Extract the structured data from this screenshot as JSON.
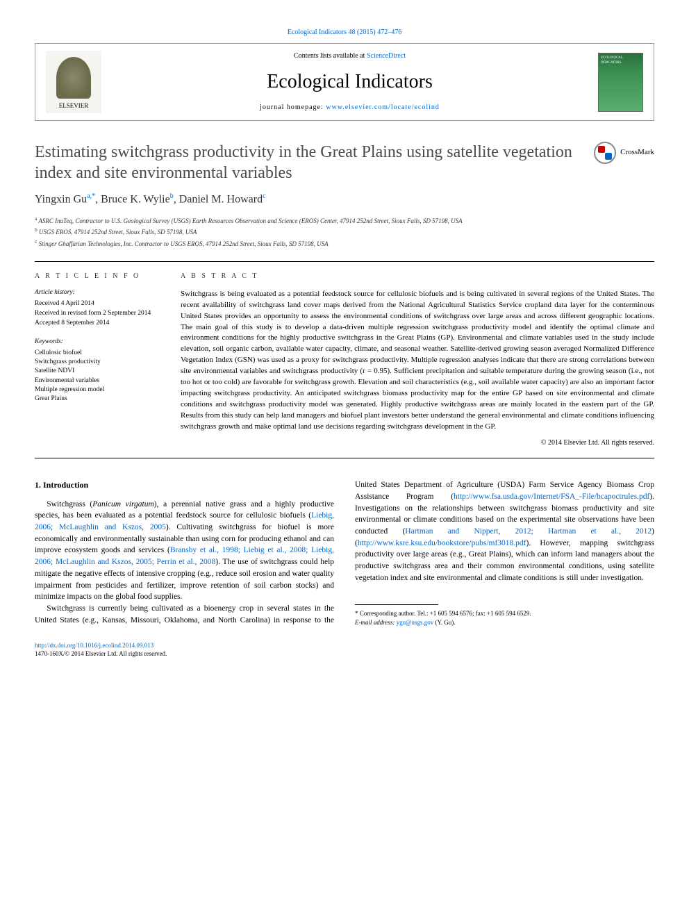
{
  "journal_ref": "Ecological Indicators 48 (2015) 472–476",
  "header": {
    "contents_prefix": "Contents lists available at ",
    "contents_link": "ScienceDirect",
    "journal_title": "Ecological Indicators",
    "homepage_prefix": "journal homepage: ",
    "homepage_link": "www.elsevier.com/locate/ecolind",
    "publisher": "ELSEVIER",
    "cover_text": "ECOLOGICAL INDICATORS"
  },
  "crossmark_label": "CrossMark",
  "article": {
    "title": "Estimating switchgrass productivity in the Great Plains using satellite vegetation index and site environmental variables",
    "authors_html": "Yingxin Gu",
    "author_a_sup": "a,*",
    "author_b": ", Bruce K. Wylie",
    "author_b_sup": "b",
    "author_c": ", Daniel M. Howard",
    "author_c_sup": "c",
    "affiliations": {
      "a_sup": "a",
      "a": " ASRC InuTeq, Contractor to U.S. Geological Survey (USGS) Earth Resources Observation and Science (EROS) Center, 47914 252nd Street, Sioux Falls, SD 57198, USA",
      "b_sup": "b",
      "b": " USGS EROS, 47914 252nd Street, Sioux Falls, SD 57198, USA",
      "c_sup": "c",
      "c": " Stinger Ghaffarian Technologies, Inc. Contractor to USGS EROS, 47914 252nd Street, Sioux Falls, SD 57198, USA"
    }
  },
  "info": {
    "section_label": "A R T I C L E   I N F O",
    "history_label": "Article history:",
    "received": "Received 4 April 2014",
    "revised": "Received in revised form 2 September 2014",
    "accepted": "Accepted 8 September 2014",
    "keywords_label": "Keywords:",
    "keywords": [
      "Cellulosic biofuel",
      "Switchgrass productivity",
      "Satellite NDVI",
      "Environmental variables",
      "Multiple regression model",
      "Great Plains"
    ]
  },
  "abstract": {
    "label": "A B S T R A C T",
    "text": "Switchgrass is being evaluated as a potential feedstock source for cellulosic biofuels and is being cultivated in several regions of the United States. The recent availability of switchgrass land cover maps derived from the National Agricultural Statistics Service cropland data layer for the conterminous United States provides an opportunity to assess the environmental conditions of switchgrass over large areas and across different geographic locations. The main goal of this study is to develop a data-driven multiple regression switchgrass productivity model and identify the optimal climate and environment conditions for the highly productive switchgrass in the Great Plains (GP). Environmental and climate variables used in the study include elevation, soil organic carbon, available water capacity, climate, and seasonal weather. Satellite-derived growing season averaged Normalized Difference Vegetation Index (GSN) was used as a proxy for switchgrass productivity. Multiple regression analyses indicate that there are strong correlations between site environmental variables and switchgrass productivity (r = 0.95). Sufficient precipitation and suitable temperature during the growing season (i.e., not too hot or too cold) are favorable for switchgrass growth. Elevation and soil characteristics (e.g., soil available water capacity) are also an important factor impacting switchgrass productivity. An anticipated switchgrass biomass productivity map for the entire GP based on site environmental and climate conditions and switchgrass productivity model was generated. Highly productive switchgrass areas are mainly located in the eastern part of the GP. Results from this study can help land managers and biofuel plant investors better understand the general environmental and climate conditions influencing switchgrass growth and make optimal land use decisions regarding switchgrass development in the GP.",
    "copyright": "© 2014 Elsevier Ltd. All rights reserved."
  },
  "body": {
    "heading": "1. Introduction",
    "p1_a": "Switchgrass (",
    "p1_species": "Panicum virgatum",
    "p1_b": "), a perennial native grass and a highly productive species, has been evaluated as a potential feedstock source for cellulosic biofuels (",
    "p1_cite1": "Liebig, 2006; McLaughlin and Kszos, 2005",
    "p1_c": "). Cultivating switchgrass for biofuel is more economically and environmentally sustainable than using corn for producing ethanol and can improve ecosystem goods and services (",
    "p1_cite2": "Bransby et al., 1998; Liebig et al., 2008; Liebig, 2006; McLaughlin and Kszos, 2005; Perrin et al., 2008",
    "p1_d": "). The use of switchgrass could help mitigate the negative effects of intensive cropping (e.g., reduce soil erosion and water quality impairment from pesticides and fertilizer, improve retention of soil carbon stocks) and minimize impacts on the global food supplies.",
    "p2_a": "Switchgrass is currently being cultivated as a bioenergy crop in several states in the United States (e.g., Kansas, Missouri, Oklahoma, and North Carolina) in response to the United States Department of Agriculture (USDA) Farm Service Agency Biomass Crop Assistance Program (",
    "p2_link1": "http://www.fsa.usda.gov/Internet/FSA_-File/bcapoctrules.pdf",
    "p2_b": "). Investigations on the relationships between switchgrass biomass productivity and site environmental or climate conditions based on the experimental site observations have been conducted (",
    "p2_cite1": "Hartman and Nippert, 2012; Hartman et al., 2012",
    "p2_c": ") (",
    "p2_link2": "http://www.ksre.ksu.edu/bookstore/pubs/mf3018.pdf",
    "p2_d": "). However, mapping switchgrass productivity over large areas (e.g., Great Plains), which can inform land managers about the productive switchgrass area and their common environmental conditions, using satellite vegetation index and site environmental and climate conditions is still under investigation."
  },
  "footnote": {
    "star": "*",
    "corr": " Corresponding author. Tel.: +1 605 594 6576; fax: +1 605 594 6529.",
    "email_label": "E-mail address: ",
    "email": "ygu@usgs.gov",
    "email_suffix": " (Y. Gu)."
  },
  "footer": {
    "doi": "http://dx.doi.org/10.1016/j.ecolind.2014.09.013",
    "issn": "1470-160X/© 2014 Elsevier Ltd. All rights reserved."
  },
  "colors": {
    "link": "#0066cc",
    "text": "#000000",
    "title_gray": "#4a4a4a",
    "cover_green_top": "#2a6e3f",
    "cover_green_bottom": "#5aae6f",
    "crossmark_red": "#cc0000",
    "crossmark_blue": "#0066cc"
  },
  "typography": {
    "body_pt": 11.5,
    "abstract_pt": 11,
    "title_pt": 24,
    "journal_title_pt": 28,
    "authors_pt": 16,
    "affil_pt": 9,
    "footnote_pt": 9
  }
}
